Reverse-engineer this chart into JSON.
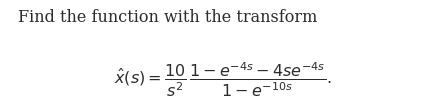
{
  "title_text": "Find the function with the transform",
  "title_fontsize": 11.5,
  "title_color": "#2b2b2b",
  "formula_fontsize": 11.5,
  "background_color": "#ffffff",
  "text_color": "#2b2b2b",
  "fig_width": 4.46,
  "fig_height": 1.08,
  "dpi": 100
}
